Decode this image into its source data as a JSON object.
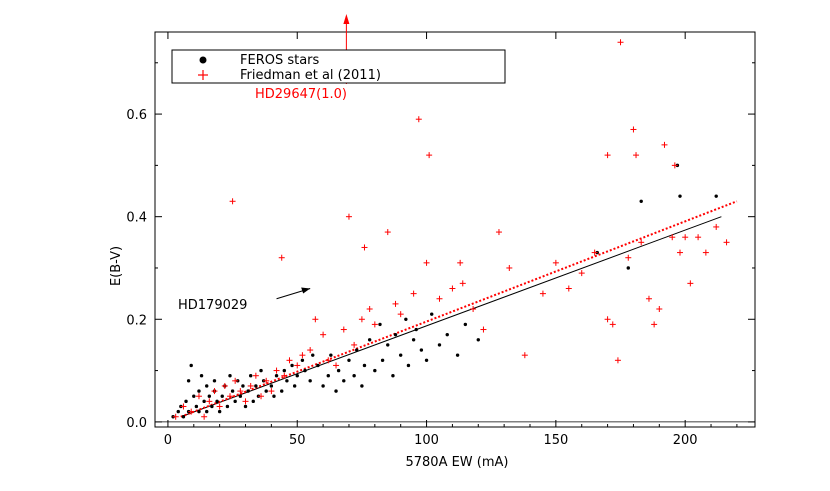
{
  "chart_data": {
    "type": "scatter",
    "xlabel": "5780A EW (mA)",
    "ylabel": "E(B-V)",
    "xlim": [
      -5,
      227
    ],
    "ylim": [
      -0.01,
      0.76
    ],
    "x_ticks": [
      0,
      50,
      100,
      150,
      200
    ],
    "x_tick_labels": [
      "0",
      "50",
      "100",
      "150",
      "200"
    ],
    "y_ticks": [
      0.0,
      0.2,
      0.4,
      0.6
    ],
    "y_tick_labels": [
      "0.0",
      "0.2",
      "0.4",
      "0.6"
    ],
    "grid": false,
    "legend_position": "top-left",
    "series": [
      {
        "name": "FEROS stars",
        "marker": "dot",
        "color": "#000000",
        "points": [
          [
            2,
            0.01
          ],
          [
            4,
            0.02
          ],
          [
            5,
            0.03
          ],
          [
            6,
            0.01
          ],
          [
            7,
            0.04
          ],
          [
            8,
            0.08
          ],
          [
            8,
            0.02
          ],
          [
            9,
            0.11
          ],
          [
            10,
            0.05
          ],
          [
            11,
            0.03
          ],
          [
            12,
            0.06
          ],
          [
            12,
            0.02
          ],
          [
            13,
            0.09
          ],
          [
            14,
            0.04
          ],
          [
            15,
            0.07
          ],
          [
            15,
            0.02
          ],
          [
            16,
            0.05
          ],
          [
            17,
            0.03
          ],
          [
            18,
            0.08
          ],
          [
            18,
            0.06
          ],
          [
            19,
            0.04
          ],
          [
            20,
            0.02
          ],
          [
            21,
            0.05
          ],
          [
            22,
            0.07
          ],
          [
            23,
            0.03
          ],
          [
            24,
            0.09
          ],
          [
            25,
            0.06
          ],
          [
            26,
            0.04
          ],
          [
            27,
            0.08
          ],
          [
            28,
            0.05
          ],
          [
            29,
            0.07
          ],
          [
            30,
            0.03
          ],
          [
            31,
            0.06
          ],
          [
            32,
            0.09
          ],
          [
            33,
            0.04
          ],
          [
            34,
            0.07
          ],
          [
            35,
            0.05
          ],
          [
            36,
            0.1
          ],
          [
            37,
            0.08
          ],
          [
            38,
            0.06
          ],
          [
            40,
            0.07
          ],
          [
            41,
            0.05
          ],
          [
            42,
            0.09
          ],
          [
            44,
            0.06
          ],
          [
            45,
            0.1
          ],
          [
            46,
            0.08
          ],
          [
            48,
            0.11
          ],
          [
            49,
            0.07
          ],
          [
            50,
            0.09
          ],
          [
            52,
            0.12
          ],
          [
            53,
            0.1
          ],
          [
            55,
            0.08
          ],
          [
            56,
            0.13
          ],
          [
            58,
            0.11
          ],
          [
            60,
            0.07
          ],
          [
            62,
            0.09
          ],
          [
            63,
            0.13
          ],
          [
            65,
            0.06
          ],
          [
            66,
            0.1
          ],
          [
            68,
            0.08
          ],
          [
            70,
            0.12
          ],
          [
            72,
            0.09
          ],
          [
            73,
            0.14
          ],
          [
            75,
            0.07
          ],
          [
            76,
            0.11
          ],
          [
            78,
            0.16
          ],
          [
            80,
            0.1
          ],
          [
            82,
            0.19
          ],
          [
            83,
            0.12
          ],
          [
            85,
            0.15
          ],
          [
            87,
            0.09
          ],
          [
            88,
            0.17
          ],
          [
            90,
            0.13
          ],
          [
            92,
            0.2
          ],
          [
            93,
            0.11
          ],
          [
            95,
            0.16
          ],
          [
            96,
            0.18
          ],
          [
            98,
            0.14
          ],
          [
            100,
            0.12
          ],
          [
            102,
            0.21
          ],
          [
            105,
            0.15
          ],
          [
            108,
            0.17
          ],
          [
            112,
            0.13
          ],
          [
            115,
            0.19
          ],
          [
            120,
            0.16
          ],
          [
            166,
            0.33
          ],
          [
            178,
            0.3
          ],
          [
            183,
            0.43
          ],
          [
            197,
            0.5
          ],
          [
            198,
            0.44
          ],
          [
            212,
            0.44
          ]
        ]
      },
      {
        "name": "Friedman et al (2011)",
        "marker": "plus",
        "color": "#ff0000",
        "points": [
          [
            3,
            0.01
          ],
          [
            6,
            0.03
          ],
          [
            9,
            0.02
          ],
          [
            12,
            0.05
          ],
          [
            14,
            0.01
          ],
          [
            16,
            0.04
          ],
          [
            18,
            0.06
          ],
          [
            20,
            0.03
          ],
          [
            22,
            0.07
          ],
          [
            24,
            0.05
          ],
          [
            25,
            0.43
          ],
          [
            26,
            0.08
          ],
          [
            28,
            0.06
          ],
          [
            30,
            0.04
          ],
          [
            32,
            0.07
          ],
          [
            34,
            0.09
          ],
          [
            36,
            0.05
          ],
          [
            38,
            0.08
          ],
          [
            40,
            0.06
          ],
          [
            42,
            0.1
          ],
          [
            44,
            0.32
          ],
          [
            45,
            0.09
          ],
          [
            47,
            0.12
          ],
          [
            50,
            0.11
          ],
          [
            52,
            0.13
          ],
          [
            55,
            0.14
          ],
          [
            57,
            0.2
          ],
          [
            60,
            0.17
          ],
          [
            62,
            0.12
          ],
          [
            65,
            0.11
          ],
          [
            68,
            0.18
          ],
          [
            70,
            0.4
          ],
          [
            72,
            0.15
          ],
          [
            75,
            0.2
          ],
          [
            76,
            0.34
          ],
          [
            78,
            0.22
          ],
          [
            80,
            0.19
          ],
          [
            85,
            0.37
          ],
          [
            88,
            0.23
          ],
          [
            90,
            0.21
          ],
          [
            95,
            0.25
          ],
          [
            97,
            0.59
          ],
          [
            100,
            0.31
          ],
          [
            101,
            0.52
          ],
          [
            105,
            0.24
          ],
          [
            110,
            0.26
          ],
          [
            113,
            0.31
          ],
          [
            114,
            0.27
          ],
          [
            118,
            0.22
          ],
          [
            122,
            0.18
          ],
          [
            128,
            0.37
          ],
          [
            132,
            0.3
          ],
          [
            138,
            0.13
          ],
          [
            145,
            0.25
          ],
          [
            150,
            0.31
          ],
          [
            155,
            0.26
          ],
          [
            160,
            0.29
          ],
          [
            165,
            0.33
          ],
          [
            170,
            0.52
          ],
          [
            170,
            0.2
          ],
          [
            172,
            0.19
          ],
          [
            174,
            0.12
          ],
          [
            175,
            0.74
          ],
          [
            178,
            0.32
          ],
          [
            180,
            0.57
          ],
          [
            181,
            0.52
          ],
          [
            183,
            0.35
          ],
          [
            186,
            0.24
          ],
          [
            188,
            0.19
          ],
          [
            190,
            0.22
          ],
          [
            192,
            0.54
          ],
          [
            195,
            0.36
          ],
          [
            196,
            0.5
          ],
          [
            198,
            0.33
          ],
          [
            200,
            0.36
          ],
          [
            202,
            0.27
          ],
          [
            205,
            0.36
          ],
          [
            208,
            0.33
          ],
          [
            212,
            0.38
          ],
          [
            216,
            0.35
          ]
        ]
      }
    ],
    "fit_lines": [
      {
        "name": "FEROS fit",
        "style": "solid",
        "color": "#000000",
        "x": [
          5,
          214
        ],
        "y": [
          0.01,
          0.4
        ]
      },
      {
        "name": "Friedman fit",
        "style": "dotted",
        "color": "#ff0000",
        "x": [
          5,
          220
        ],
        "y": [
          0.01,
          0.43
        ]
      }
    ],
    "annotations": [
      {
        "text": "HD179029",
        "color": "#000000",
        "arrow_from": [
          42,
          0.24
        ],
        "arrow_to": [
          55,
          0.26
        ]
      },
      {
        "text": "HD29647(1.0)",
        "color": "#ff0000",
        "arrow_from": [
          69,
          0.66
        ],
        "arrow_to": [
          69,
          0.78
        ]
      }
    ]
  }
}
